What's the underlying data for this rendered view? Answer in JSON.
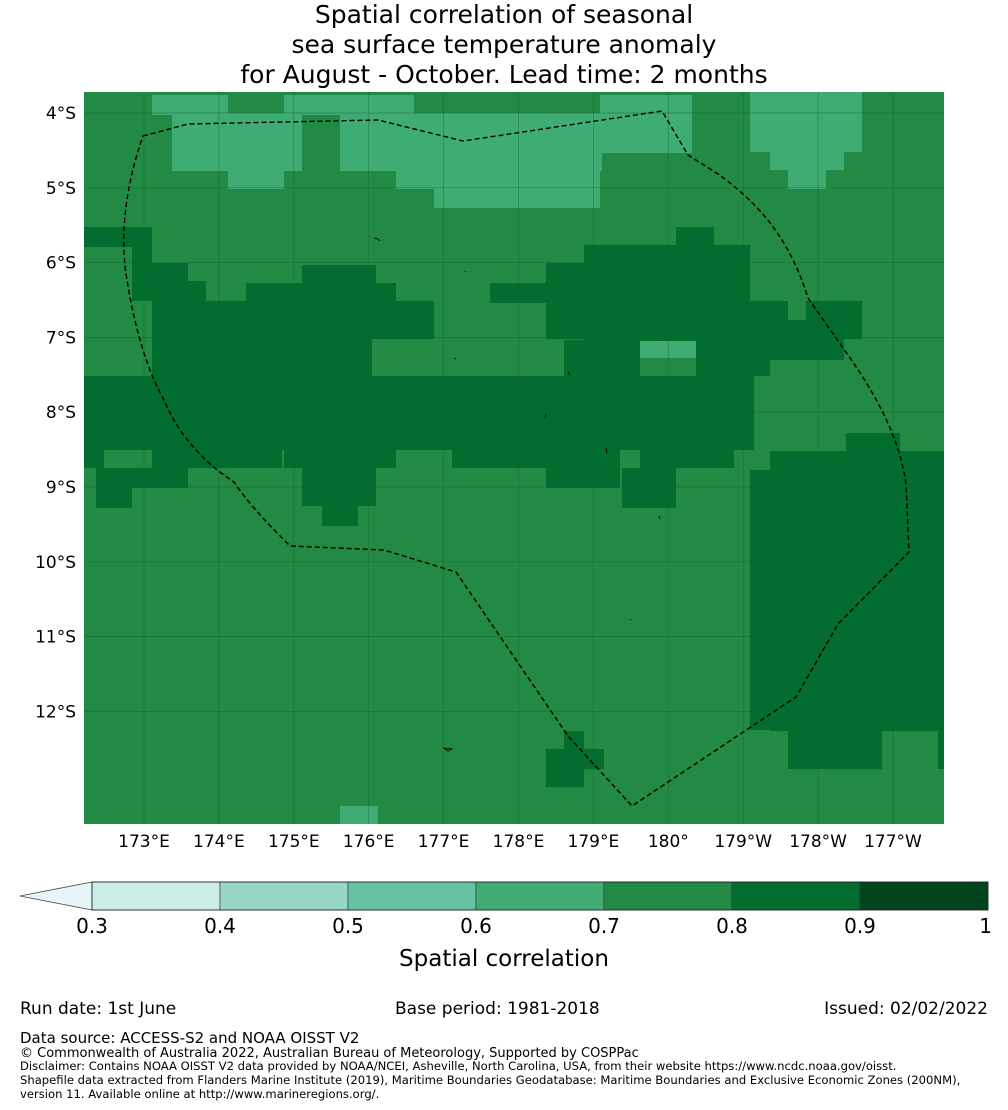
{
  "title": {
    "line1": "Spatial correlation of seasonal",
    "line2": "sea surface temperature anomaly",
    "line3": "for August - October. Lead time: 2 months"
  },
  "chart_data": {
    "type": "heatmap",
    "latitude_labels": [
      "4°S",
      "5°S",
      "6°S",
      "7°S",
      "8°S",
      "9°S",
      "10°S",
      "11°S",
      "12°S"
    ],
    "longitude_labels": [
      "173°E",
      "174°E",
      "175°E",
      "176°E",
      "177°E",
      "178°E",
      "179°E",
      "180°",
      "179°W",
      "178°W",
      "177°W"
    ],
    "lat_range": [
      -13.5,
      -3.7
    ],
    "lon_range": [
      172.2,
      183.7
    ],
    "grid": true,
    "colorbar": {
      "label": "Spatial correlation",
      "ticks": [
        "0.3",
        "0.4",
        "0.5",
        "0.6",
        "0.7",
        "0.8",
        "0.9",
        "1"
      ],
      "extend": "min",
      "colors": [
        "#cceee6",
        "#98d7c7",
        "#64c2a3",
        "#3fad73",
        "#238a45",
        "#026d2e",
        "#00441b"
      ],
      "under_color": "#e6f5fa"
    },
    "regions_approx": [
      {
        "level": "0.6-0.7",
        "area": "northern band around 4°S-5°S"
      },
      {
        "level": "0.7-0.8",
        "area": "background of most of the map"
      },
      {
        "level": "0.8-0.9",
        "area": "central band 6°S-9°S and east 8.5°S-13°S"
      }
    ]
  },
  "footer": {
    "run_date": "Run date: 1st June",
    "base_period": "Base period: 1981-2018",
    "issued": "Issued: 02/02/2022",
    "data_source": "Data source: ACCESS-S2 and NOAA OISST V2",
    "copyright": "© Commonwealth of Australia 2022, Australian Bureau of Meteorology, Supported by COSPPac",
    "disclaimer1": "Disclaimer: Contains NOAA OISST V2 data provided by NOAA/NCEI, Asheville, North Carolina, USA, from their website https://www.ncdc.noaa.gov/oisst.",
    "disclaimer2": "Shapefile data extracted from Flanders Marine Institute (2019), Maritime Boundaries Geodatabase: Maritime Boundaries and Exclusive Economic Zones (200NM),",
    "disclaimer3": "version 11. Available online at http://www.marineregions.org/."
  }
}
